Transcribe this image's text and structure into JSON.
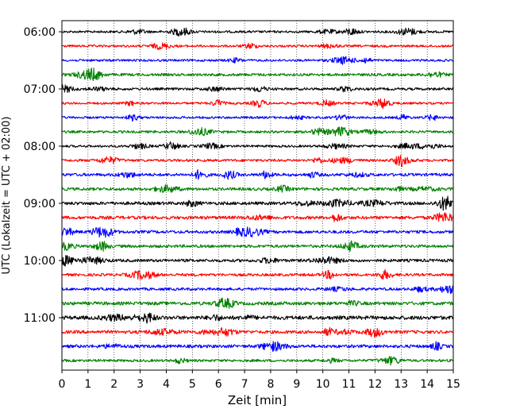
{
  "chart_data": {
    "type": "line",
    "description_kind": "helicorder",
    "xlabel": "Zeit  [min]",
    "ylabel": "UTC (Lokalzeit = UTC + 02:00)",
    "xlim": [
      0,
      15
    ],
    "x_ticks": [
      0,
      1,
      2,
      3,
      4,
      5,
      6,
      7,
      8,
      9,
      10,
      11,
      12,
      13,
      14,
      15
    ],
    "x_tick_labels": [
      "0",
      "1",
      "2",
      "3",
      "4",
      "5",
      "6",
      "7",
      "8",
      "9",
      "10",
      "11",
      "12",
      "13",
      "14",
      "15"
    ],
    "grid": "vertical dotted at each minute",
    "y_ticks": [
      "06:00",
      "07:00",
      "08:00",
      "09:00",
      "10:00",
      "11:00"
    ],
    "trace_colors": [
      "#000000",
      "#ff0000",
      "#0000ff",
      "#008000"
    ],
    "trace_start_times": [
      "06:00",
      "06:15",
      "06:30",
      "06:45",
      "07:00",
      "07:15",
      "07:30",
      "07:45",
      "08:00",
      "08:15",
      "08:30",
      "08:45",
      "09:00",
      "09:15",
      "09:30",
      "09:45",
      "10:00",
      "10:15",
      "10:30",
      "10:45",
      "11:00",
      "11:15",
      "11:30",
      "11:45"
    ],
    "trace_amplitude_level": [
      1,
      1,
      1,
      1.2,
      1.1,
      1,
      1,
      1.1,
      1,
      1.1,
      1.3,
      1.3,
      1.4,
      1.4,
      1.3,
      1.3,
      1.3,
      1.2,
      1.2,
      1.5,
      1.7,
      1.4,
      1.4,
      1.1
    ]
  }
}
